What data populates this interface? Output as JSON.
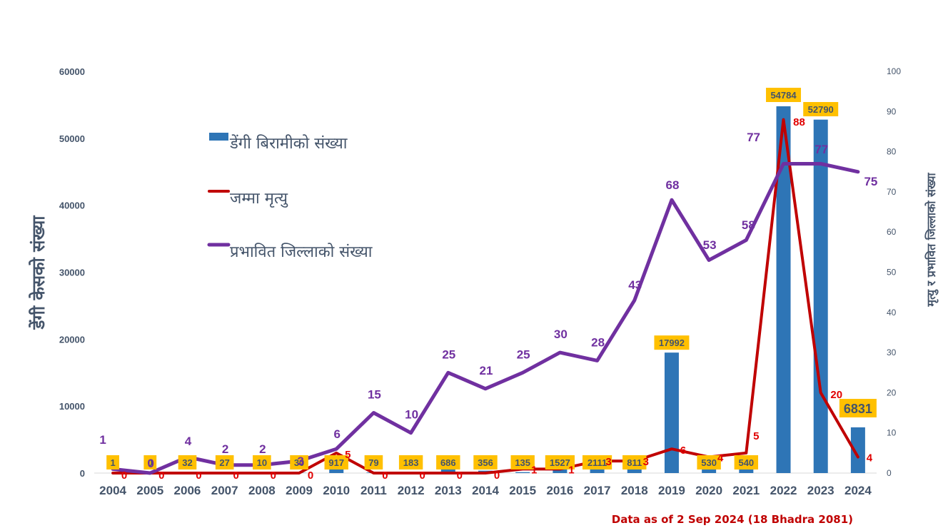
{
  "chart_data": {
    "type": "bar",
    "categories": [
      "2004",
      "2005",
      "2006",
      "2007",
      "2008",
      "2009",
      "2010",
      "2011",
      "2012",
      "2013",
      "2014",
      "2015",
      "2016",
      "2017",
      "2018",
      "2019",
      "2020",
      "2021",
      "2022",
      "2023",
      "2024"
    ],
    "series": [
      {
        "name": "डेंगी बिरामीको संख्या",
        "type": "bar",
        "axis": "left",
        "color": "#2e75b6",
        "values": [
          1,
          0,
          32,
          27,
          10,
          30,
          917,
          79,
          183,
          686,
          356,
          135,
          1527,
          2111,
          811,
          17992,
          530,
          540,
          54784,
          52790,
          6831
        ]
      },
      {
        "name": "जम्मा मृत्यु",
        "type": "line",
        "axis": "right",
        "color": "#c00000",
        "values": [
          0,
          0,
          0,
          0,
          0,
          0,
          5,
          0,
          0,
          0,
          0,
          1,
          1,
          3,
          3,
          6,
          4,
          5,
          88,
          20,
          4
        ]
      },
      {
        "name": "प्रभावित जिल्लाको संख्या",
        "type": "line",
        "axis": "right",
        "color": "#7030a0",
        "values": [
          1,
          0,
          4,
          2,
          2,
          3,
          6,
          15,
          10,
          25,
          21,
          25,
          30,
          28,
          43,
          68,
          53,
          58,
          77,
          77,
          75
        ]
      }
    ],
    "ylabel": "डेंगी केसको संख्या",
    "y2label": "मृत्यु र प्रभावित जिल्लाको संख्या",
    "ylim": [
      0,
      60000
    ],
    "y2lim": [
      0,
      100
    ],
    "yticks": [
      "0",
      "10000",
      "20000",
      "30000",
      "40000",
      "50000",
      "60000"
    ],
    "y2ticks": [
      "0",
      "10",
      "20",
      "30",
      "40",
      "50",
      "60",
      "70",
      "80",
      "90",
      "100"
    ],
    "legend_position": "top-left",
    "note": "Data as of 2 Sep 2024 (18 Bhadra 2081)",
    "colors": {
      "bar": "#2e75b6",
      "deaths": "#c00000",
      "districts": "#7030a0",
      "label_bg": "#ffc000",
      "axis_text": "#44546a",
      "note": "#c00000"
    }
  }
}
